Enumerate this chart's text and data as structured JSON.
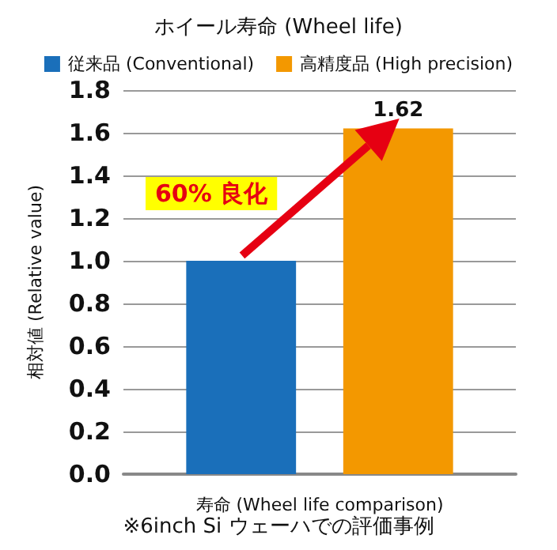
{
  "chart_data": {
    "type": "bar",
    "title": "ホイール寿命 (Wheel life)",
    "xlabel": "寿命 (Wheel life comparison)",
    "ylabel": "相対値 (Relative value)",
    "categories": [
      null
    ],
    "series": [
      {
        "name": "従来品 (Conventional)",
        "color": "#1a6fba",
        "values": [
          1.0
        ],
        "value_labels": [
          null
        ]
      },
      {
        "name": "高精度品 (High precision)",
        "color": "#f39800",
        "values": [
          1.62
        ],
        "value_labels": [
          "1.62"
        ]
      }
    ],
    "ylim": [
      0,
      1.8
    ],
    "yticks": [
      {
        "value": 0,
        "label": "0.0"
      },
      {
        "value": 0.2,
        "label": "0.2"
      },
      {
        "value": 0.4,
        "label": "0.4"
      },
      {
        "value": 0.6,
        "label": "0.6"
      },
      {
        "value": 0.8,
        "label": "0.8"
      },
      {
        "value": 1,
        "label": "1.0"
      },
      {
        "value": 1.2,
        "label": "1.2"
      },
      {
        "value": 1.4,
        "label": "1.4"
      },
      {
        "value": 1.6,
        "label": "1.6"
      },
      {
        "value": 1.8,
        "label": "1.8"
      }
    ],
    "grid": "y",
    "legend": "top",
    "annotations": [
      "60% 良化",
      "※6inch Si ウェーハでの評価事例"
    ]
  }
}
